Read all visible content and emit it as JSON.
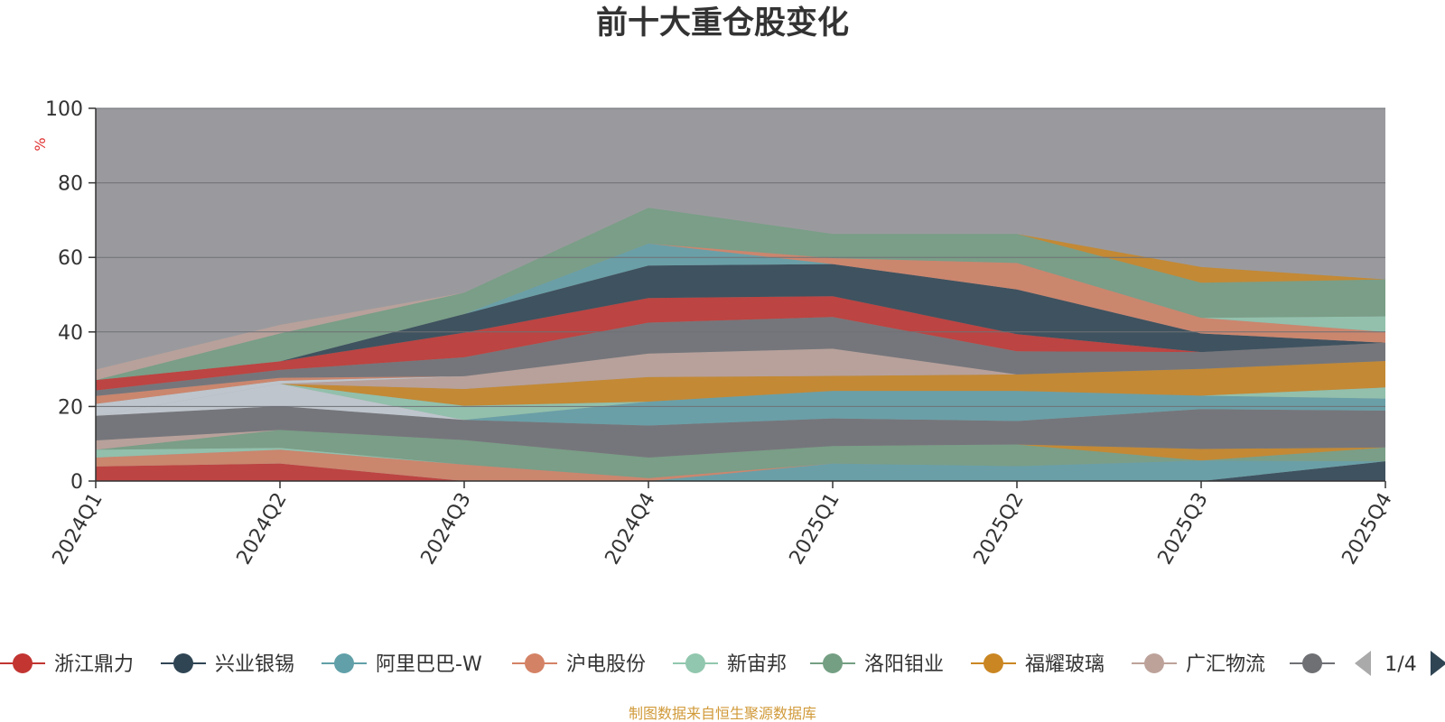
{
  "chart_data": {
    "type": "area",
    "title": "前十大重仓股变化",
    "ylabel": "%",
    "xlabel": "",
    "ylim": [
      0,
      100
    ],
    "yticks": [
      0,
      20,
      40,
      60,
      80,
      100
    ],
    "categories": [
      "2024Q1",
      "2024Q2",
      "2024Q3",
      "2024Q4",
      "2025Q1",
      "2025Q2",
      "2025Q3",
      "2025Q4"
    ],
    "grid": true,
    "legend_position": "bottom",
    "series": [
      {
        "name": "浙江鼎力",
        "color": "#c23531",
        "values": [
          3.9,
          4.7,
          0,
          0,
          0,
          0,
          0,
          0
        ]
      },
      {
        "name": "兴业银锡",
        "color": "#2f4554",
        "values": [
          0,
          0,
          0,
          0,
          0,
          0,
          0,
          5.3
        ]
      },
      {
        "name": "阿里巴巴-W",
        "color": "#61a0a8",
        "values": [
          0,
          0,
          0,
          0,
          4.7,
          4.0,
          5.5,
          0
        ]
      },
      {
        "name": "沪电股份",
        "color": "#d48265",
        "values": [
          2.4,
          3.7,
          4.4,
          0.8,
          0,
          0,
          0,
          0
        ]
      },
      {
        "name": "新宙邦",
        "color": "#91c7ae",
        "values": [
          2.1,
          0.5,
          0,
          0,
          0,
          0,
          0,
          0
        ]
      },
      {
        "name": "洛阳钼业",
        "color": "#749f83",
        "values": [
          0,
          4.8,
          6.6,
          5.5,
          4.7,
          5.8,
          0,
          3.7
        ]
      },
      {
        "name": "福耀玻璃",
        "color": "#ca8622",
        "values": [
          0,
          0,
          0,
          0,
          0,
          0,
          3.1,
          0
        ]
      },
      {
        "name": "广汇物流",
        "color": "#bda29a",
        "values": [
          2.5,
          0,
          0,
          0,
          0,
          0,
          0,
          0
        ]
      },
      {
        "name": "",
        "color": "#6e7074",
        "values": [
          6.6,
          6.4,
          5.4,
          8.6,
          7.4,
          6.3,
          10.7,
          9.9
        ]
      },
      {
        "name": "",
        "color": "#61a0a8",
        "values": [
          0,
          0,
          0,
          6.4,
          7.4,
          8.1,
          3.6,
          3.2
        ]
      },
      {
        "name": "",
        "color": "#c4ccd3",
        "values": [
          0,
          6.0,
          0,
          0,
          0,
          0,
          0,
          0
        ]
      },
      {
        "name": "",
        "color": "#91c7ae",
        "values": [
          0,
          0,
          3.8,
          0,
          0,
          0,
          0,
          3.0
        ]
      },
      {
        "name": "",
        "color": "#ca8622",
        "values": [
          0,
          0,
          4.5,
          6.6,
          4.0,
          4.4,
          7.2,
          7.1
        ]
      },
      {
        "name": "",
        "color": "#bda29a",
        "values": [
          0,
          0,
          3.4,
          6.3,
          7.3,
          0,
          0,
          0
        ]
      },
      {
        "name": "",
        "color": "#c4ccd3",
        "values": [
          3.2,
          0.8,
          0,
          0,
          0,
          0,
          0,
          0
        ]
      },
      {
        "name": "",
        "color": "#d48265",
        "values": [
          2.1,
          0.8,
          0,
          0,
          0,
          0,
          0,
          0
        ]
      },
      {
        "name": "",
        "color": "#6e7074",
        "values": [
          1.5,
          2.1,
          5.1,
          8.3,
          8.5,
          6.2,
          4.5,
          4.9
        ]
      },
      {
        "name": "",
        "color": "#c23531",
        "values": [
          2.8,
          2.3,
          6.6,
          6.6,
          5.6,
          4.6,
          0,
          0
        ]
      },
      {
        "name": "",
        "color": "#2f4554",
        "values": [
          0,
          0,
          5.0,
          8.7,
          8.6,
          12.0,
          5.0,
          0
        ]
      },
      {
        "name": "",
        "color": "#61a0a8",
        "values": [
          0,
          0,
          0,
          5.9,
          0,
          0,
          0,
          0
        ]
      },
      {
        "name": "",
        "color": "#d48265",
        "values": [
          0,
          0,
          0,
          0,
          1.6,
          7.1,
          4.2,
          2.9
        ]
      },
      {
        "name": "",
        "color": "#91c7ae",
        "values": [
          0,
          0,
          0,
          0,
          0,
          0,
          0,
          4.2
        ]
      },
      {
        "name": "",
        "color": "#749f83",
        "values": [
          0,
          7.5,
          5.7,
          9.6,
          6.5,
          7.8,
          9.4,
          9.9
        ]
      },
      {
        "name": "",
        "color": "#ca8622",
        "values": [
          0,
          0,
          0,
          0,
          0,
          0,
          4.2,
          0
        ]
      },
      {
        "name": "",
        "color": "#bda29a",
        "values": [
          2.8,
          2.3,
          0,
          0,
          0,
          0,
          0,
          0
        ]
      }
    ]
  },
  "legend": {
    "page_label": "1/4"
  },
  "source_note": "制图数据来自恒生聚源数据库",
  "colors": {
    "plot_background": "#9a9a9e",
    "axis": "#333333",
    "pager_active": "#2f4554",
    "pager_inactive": "#aaaaaa"
  }
}
